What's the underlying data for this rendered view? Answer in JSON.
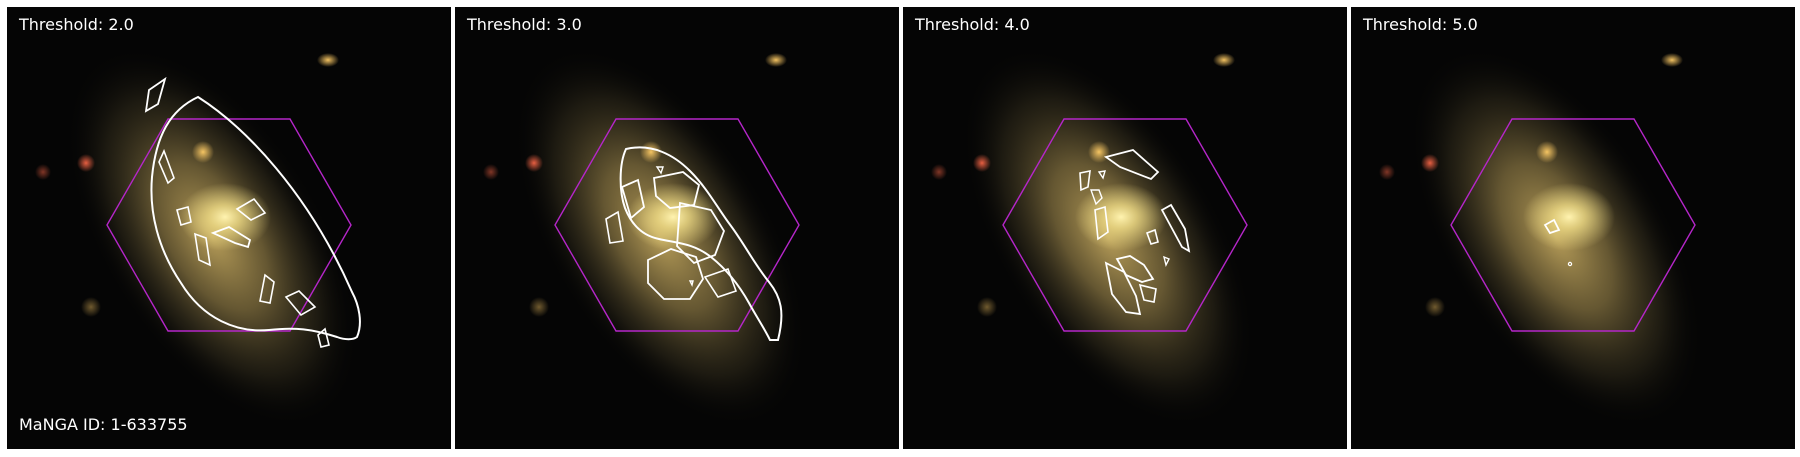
{
  "figure": {
    "panels": [
      {
        "threshold_label": "Threshold: 2.0"
      },
      {
        "threshold_label": "Threshold: 3.0"
      },
      {
        "threshold_label": "Threshold: 4.0"
      },
      {
        "threshold_label": "Threshold: 5.0"
      }
    ],
    "manga_id_label": "MaNGA ID: 1-633755"
  },
  "colors": {
    "background": "#050505",
    "contour": "#ffffff",
    "ifu_hexagon": "#b526c9",
    "galaxy_core": "#f7e38a",
    "galaxy_halo": "#8e7a45",
    "panel_separator": "#ffffff"
  }
}
